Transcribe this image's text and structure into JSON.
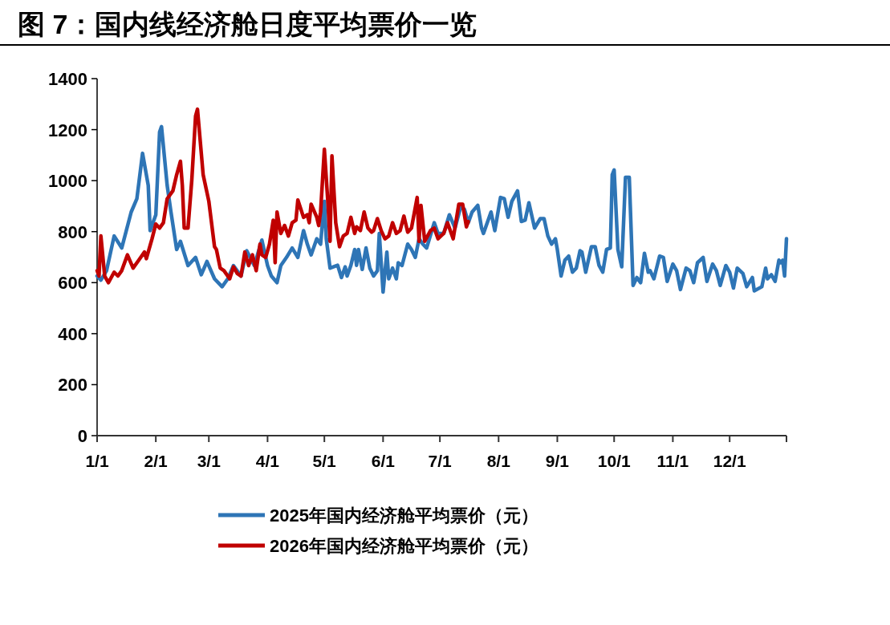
{
  "chart_data": {
    "type": "line",
    "title": "图 7：国内线经济舱日度平均票价一览",
    "ylim": [
      0,
      1400
    ],
    "yticks": [
      0,
      200,
      400,
      600,
      800,
      1000,
      1200,
      1400
    ],
    "xlim": [
      "--01-01",
      "--12-31"
    ],
    "xticks": [
      {
        "value": "--01-01",
        "label": "1/1"
      },
      {
        "value": "--02-01",
        "label": "2/1"
      },
      {
        "value": "--03-01",
        "label": "3/1"
      },
      {
        "value": "--04-01",
        "label": "4/1"
      },
      {
        "value": "--05-01",
        "label": "5/1"
      },
      {
        "value": "--06-01",
        "label": "6/1"
      },
      {
        "value": "--07-01",
        "label": "7/1"
      },
      {
        "value": "--08-01",
        "label": "8/1"
      },
      {
        "value": "--09-01",
        "label": "9/1"
      },
      {
        "value": "--10-01",
        "label": "10/1"
      },
      {
        "value": "--11-01",
        "label": "11/1"
      },
      {
        "value": "--12-01",
        "label": "12/1"
      },
      {
        "value": "--12-31",
        "label": null
      }
    ],
    "legend": "bottom",
    "marker": "none",
    "line_style": "solid",
    "series": [
      {
        "name": "2025年国内经济舱平均票价（元）",
        "color": "#2e75b6",
        "x": [
          "--01-01",
          "--01-03",
          "--01-06",
          "--01-10",
          "--01-14",
          "--01-19",
          "--01-22",
          "--01-25",
          "--01-28",
          "--01-29",
          "--02-01",
          "--02-03",
          "--02-04",
          "--02-07",
          "--02-09",
          "--02-12",
          "--02-14",
          "--02-18",
          "--02-22",
          "--02-25",
          "--02-28",
          "--03-04",
          "--03-08",
          "--03-11",
          "--03-14",
          "--03-18",
          "--03-21",
          "--03-25",
          "--03-29",
          "--04-01",
          "--04-03",
          "--04-06",
          "--04-08",
          "--04-11",
          "--04-14",
          "--04-17",
          "--04-20",
          "--04-22",
          "--04-24",
          "--04-27",
          "--04-29",
          "--05-01",
          "--05-02",
          "--05-04",
          "--05-08",
          "--05-10",
          "--05-12",
          "--05-13",
          "--05-15",
          "--05-17",
          "--05-18",
          "--05-19",
          "--05-21",
          "--05-23",
          "--05-25",
          "--05-27",
          "--05-29",
          "--05-30",
          "--06-01",
          "--06-03",
          "--06-04",
          "--06-06",
          "--06-08",
          "--06-09",
          "--06-11",
          "--06-14",
          "--06-16",
          "--06-18",
          "--06-20",
          "--06-22",
          "--06-24",
          "--06-28",
          "--06-30",
          "--07-03",
          "--07-06",
          "--07-09",
          "--07-12",
          "--07-14",
          "--07-16",
          "--07-18",
          "--07-21",
          "--07-23",
          "--07-24",
          "--07-28",
          "--07-30",
          "--08-02",
          "--08-04",
          "--08-06",
          "--08-08",
          "--08-11",
          "--08-13",
          "--08-15",
          "--08-17",
          "--08-20",
          "--08-23",
          "--08-25",
          "--08-27",
          "--08-29",
          "--08-31",
          "--09-01",
          "--09-03",
          "--09-05",
          "--09-07",
          "--09-09",
          "--09-11",
          "--09-13",
          "--09-14",
          "--09-16",
          "--09-19",
          "--09-21",
          "--09-23",
          "--09-25",
          "--09-27",
          "--09-29",
          "--09-30",
          "--10-01",
          "--10-03",
          "--10-05",
          "--10-07",
          "--10-09",
          "--10-11",
          "--10-13",
          "--10-15",
          "--10-17",
          "--10-19",
          "--10-20",
          "--10-22",
          "--10-25",
          "--10-27",
          "--10-29",
          "--11-01",
          "--11-03",
          "--11-05",
          "--11-08",
          "--11-10",
          "--11-12",
          "--11-14",
          "--11-17",
          "--11-19",
          "--11-22",
          "--11-24",
          "--11-26",
          "--11-29",
          "--12-01",
          "--12-03",
          "--12-05",
          "--12-08",
          "--12-10",
          "--12-13",
          "--12-14",
          "--12-18",
          "--12-20",
          "--12-21",
          "--12-23",
          "--12-25",
          "--12-27",
          "--12-28",
          "--12-29",
          "--12-30",
          "--12-31"
        ],
        "values": [
          626,
          610,
          647,
          783,
          736,
          877,
          929,
          1107,
          981,
          804,
          866,
          1191,
          1212,
          981,
          877,
          730,
          762,
          667,
          699,
          631,
          683,
          615,
          584,
          615,
          667,
          626,
          725,
          667,
          767,
          667,
          626,
          600,
          667,
          699,
          736,
          699,
          804,
          751,
          709,
          772,
          751,
          919,
          772,
          657,
          668,
          620,
          662,
          626,
          668,
          730,
          668,
          730,
          652,
          736,
          657,
          626,
          647,
          793,
          563,
          720,
          615,
          657,
          615,
          678,
          667,
          751,
          730,
          699,
          772,
          751,
          736,
          835,
          793,
          793,
          866,
          814,
          898,
          887,
          835,
          877,
          903,
          814,
          793,
          877,
          804,
          934,
          929,
          856,
          919,
          960,
          840,
          845,
          913,
          814,
          851,
          851,
          783,
          751,
          772,
          730,
          626,
          688,
          704,
          641,
          657,
          725,
          720,
          641,
          741,
          741,
          668,
          641,
          730,
          736,
          1023,
          1042,
          730,
          662,
          1013,
          1013,
          589,
          620,
          600,
          715,
          641,
          647,
          615,
          704,
          699,
          605,
          673,
          647,
          573,
          657,
          647,
          600,
          678,
          699,
          605,
          673,
          647,
          589,
          667,
          641,
          579,
          657,
          636,
          584,
          620,
          568,
          584,
          657,
          615,
          631,
          605,
          688,
          678,
          688,
          626,
          772
        ]
      },
      {
        "name": "2026年国内经济舱平均票价（元）",
        "color": "#c00000",
        "x": [
          "--01-01",
          "--01-02",
          "--01-03",
          "--01-05",
          "--01-07",
          "--01-10",
          "--01-12",
          "--01-14",
          "--01-17",
          "--01-20",
          "--01-23",
          "--01-26",
          "--01-27",
          "--01-30",
          "--02-01",
          "--02-03",
          "--02-05",
          "--02-07",
          "--02-10",
          "--02-12",
          "--02-14",
          "--02-15",
          "--02-16",
          "--02-18",
          "--02-20",
          "--02-22",
          "--02-23",
          "--02-26",
          "--03-01",
          "--03-04",
          "--03-05",
          "--03-07",
          "--03-09",
          "--03-12",
          "--03-14",
          "--03-16",
          "--03-18",
          "--03-20",
          "--03-22",
          "--03-24",
          "--03-26",
          "--03-28",
          "--03-29",
          "--03-31",
          "--04-02",
          "--04-04",
          "--04-05",
          "--04-06",
          "--04-08",
          "--04-10",
          "--04-12",
          "--04-14",
          "--04-16",
          "--04-17",
          "--04-20",
          "--04-22",
          "--04-23",
          "--04-24",
          "--04-27",
          "--04-28",
          "--04-29",
          "--05-01",
          "--05-03",
          "--05-04",
          "--05-05",
          "--05-07",
          "--05-09",
          "--05-11",
          "--05-13",
          "--05-15",
          "--05-17",
          "--05-18",
          "--05-20",
          "--05-22",
          "--05-24",
          "--05-26",
          "--05-27",
          "--05-29",
          "--05-31",
          "--06-02",
          "--06-04",
          "--06-06",
          "--06-08",
          "--06-10",
          "--06-12",
          "--06-14",
          "--06-16",
          "--06-19",
          "--06-20",
          "--06-21",
          "--06-23",
          "--06-26",
          "--06-28",
          "--06-30",
          "--07-03",
          "--07-05",
          "--07-08",
          "--07-11",
          "--07-13",
          "--07-15",
          "--07-16"
        ],
        "values": [
          647,
          626,
          783,
          626,
          600,
          641,
          626,
          647,
          709,
          657,
          688,
          720,
          694,
          772,
          830,
          814,
          835,
          929,
          960,
          1023,
          1076,
          981,
          814,
          814,
          1002,
          1253,
          1280,
          1023,
          919,
          741,
          730,
          657,
          647,
          615,
          662,
          636,
          626,
          720,
          667,
          709,
          647,
          751,
          709,
          699,
          751,
          845,
          678,
          877,
          793,
          824,
          783,
          835,
          845,
          924,
          856,
          866,
          835,
          908,
          856,
          824,
          877,
          1123,
          898,
          762,
          1097,
          835,
          741,
          783,
          793,
          856,
          793,
          819,
          804,
          877,
          814,
          798,
          804,
          851,
          804,
          772,
          783,
          835,
          793,
          804,
          861,
          798,
          814,
          934,
          762,
          903,
          762,
          804,
          814,
          772,
          793,
          835,
          772,
          908,
          908,
          819,
          840
        ]
      }
    ]
  }
}
